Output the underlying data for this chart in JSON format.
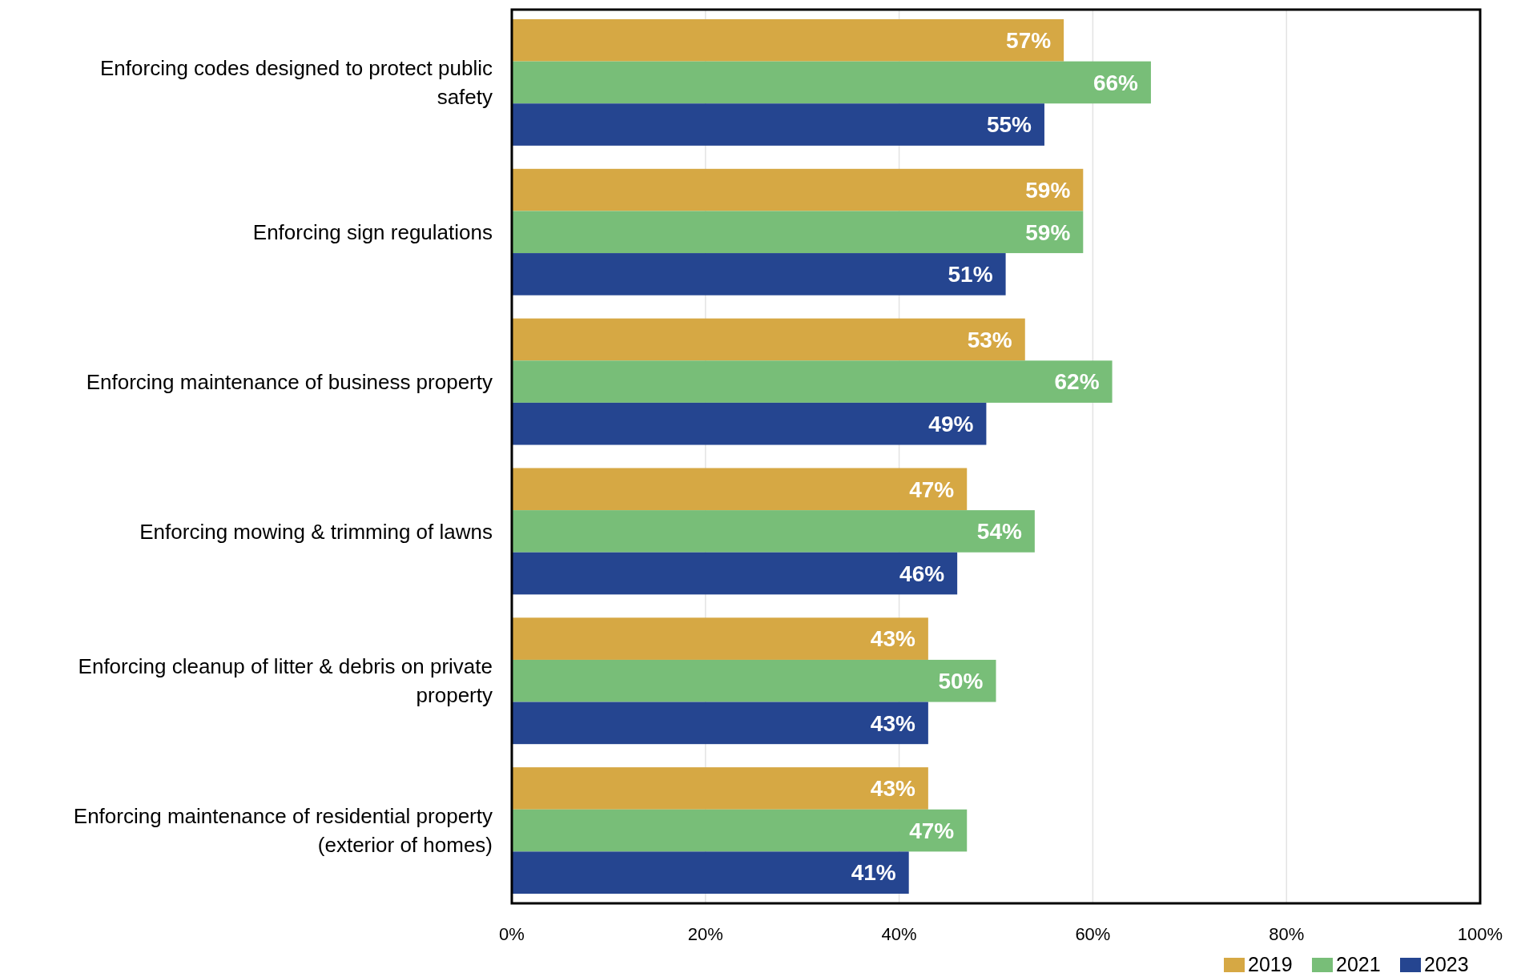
{
  "chart_data": {
    "type": "bar",
    "orientation": "horizontal",
    "categories": [
      "Enforcing codes designed to protect public safety",
      "Enforcing sign regulations",
      "Enforcing maintenance of business property",
      "Enforcing mowing & trimming of lawns",
      "Enforcing cleanup of litter & debris on private property",
      "Enforcing maintenance of residential property (exterior of homes)"
    ],
    "series": [
      {
        "name": "2019",
        "color": "#d6a844",
        "values": [
          57,
          59,
          53,
          47,
          43,
          43
        ],
        "value_labels": [
          "57%",
          "59%",
          "53%",
          "47%",
          "43%",
          "43%"
        ]
      },
      {
        "name": "2021",
        "color": "#78be78",
        "values": [
          66,
          59,
          62,
          54,
          50,
          47
        ],
        "value_labels": [
          "66%",
          "59%",
          "62%",
          "54%",
          "50%",
          "47%"
        ]
      },
      {
        "name": "2023",
        "color": "#254590",
        "values": [
          55,
          51,
          49,
          46,
          43,
          41
        ],
        "value_labels": [
          "55%",
          "51%",
          "49%",
          "46%",
          "43%",
          "41%"
        ]
      }
    ],
    "xlim": [
      0,
      100
    ],
    "xticks": [
      {
        "value": 0,
        "label": "0%"
      },
      {
        "value": 20,
        "label": "20%"
      },
      {
        "value": 40,
        "label": "40%"
      },
      {
        "value": 60,
        "label": "60%"
      },
      {
        "value": 80,
        "label": "80%"
      },
      {
        "value": 100,
        "label": "100%"
      }
    ],
    "grid": "x",
    "legend": "bottom right"
  }
}
